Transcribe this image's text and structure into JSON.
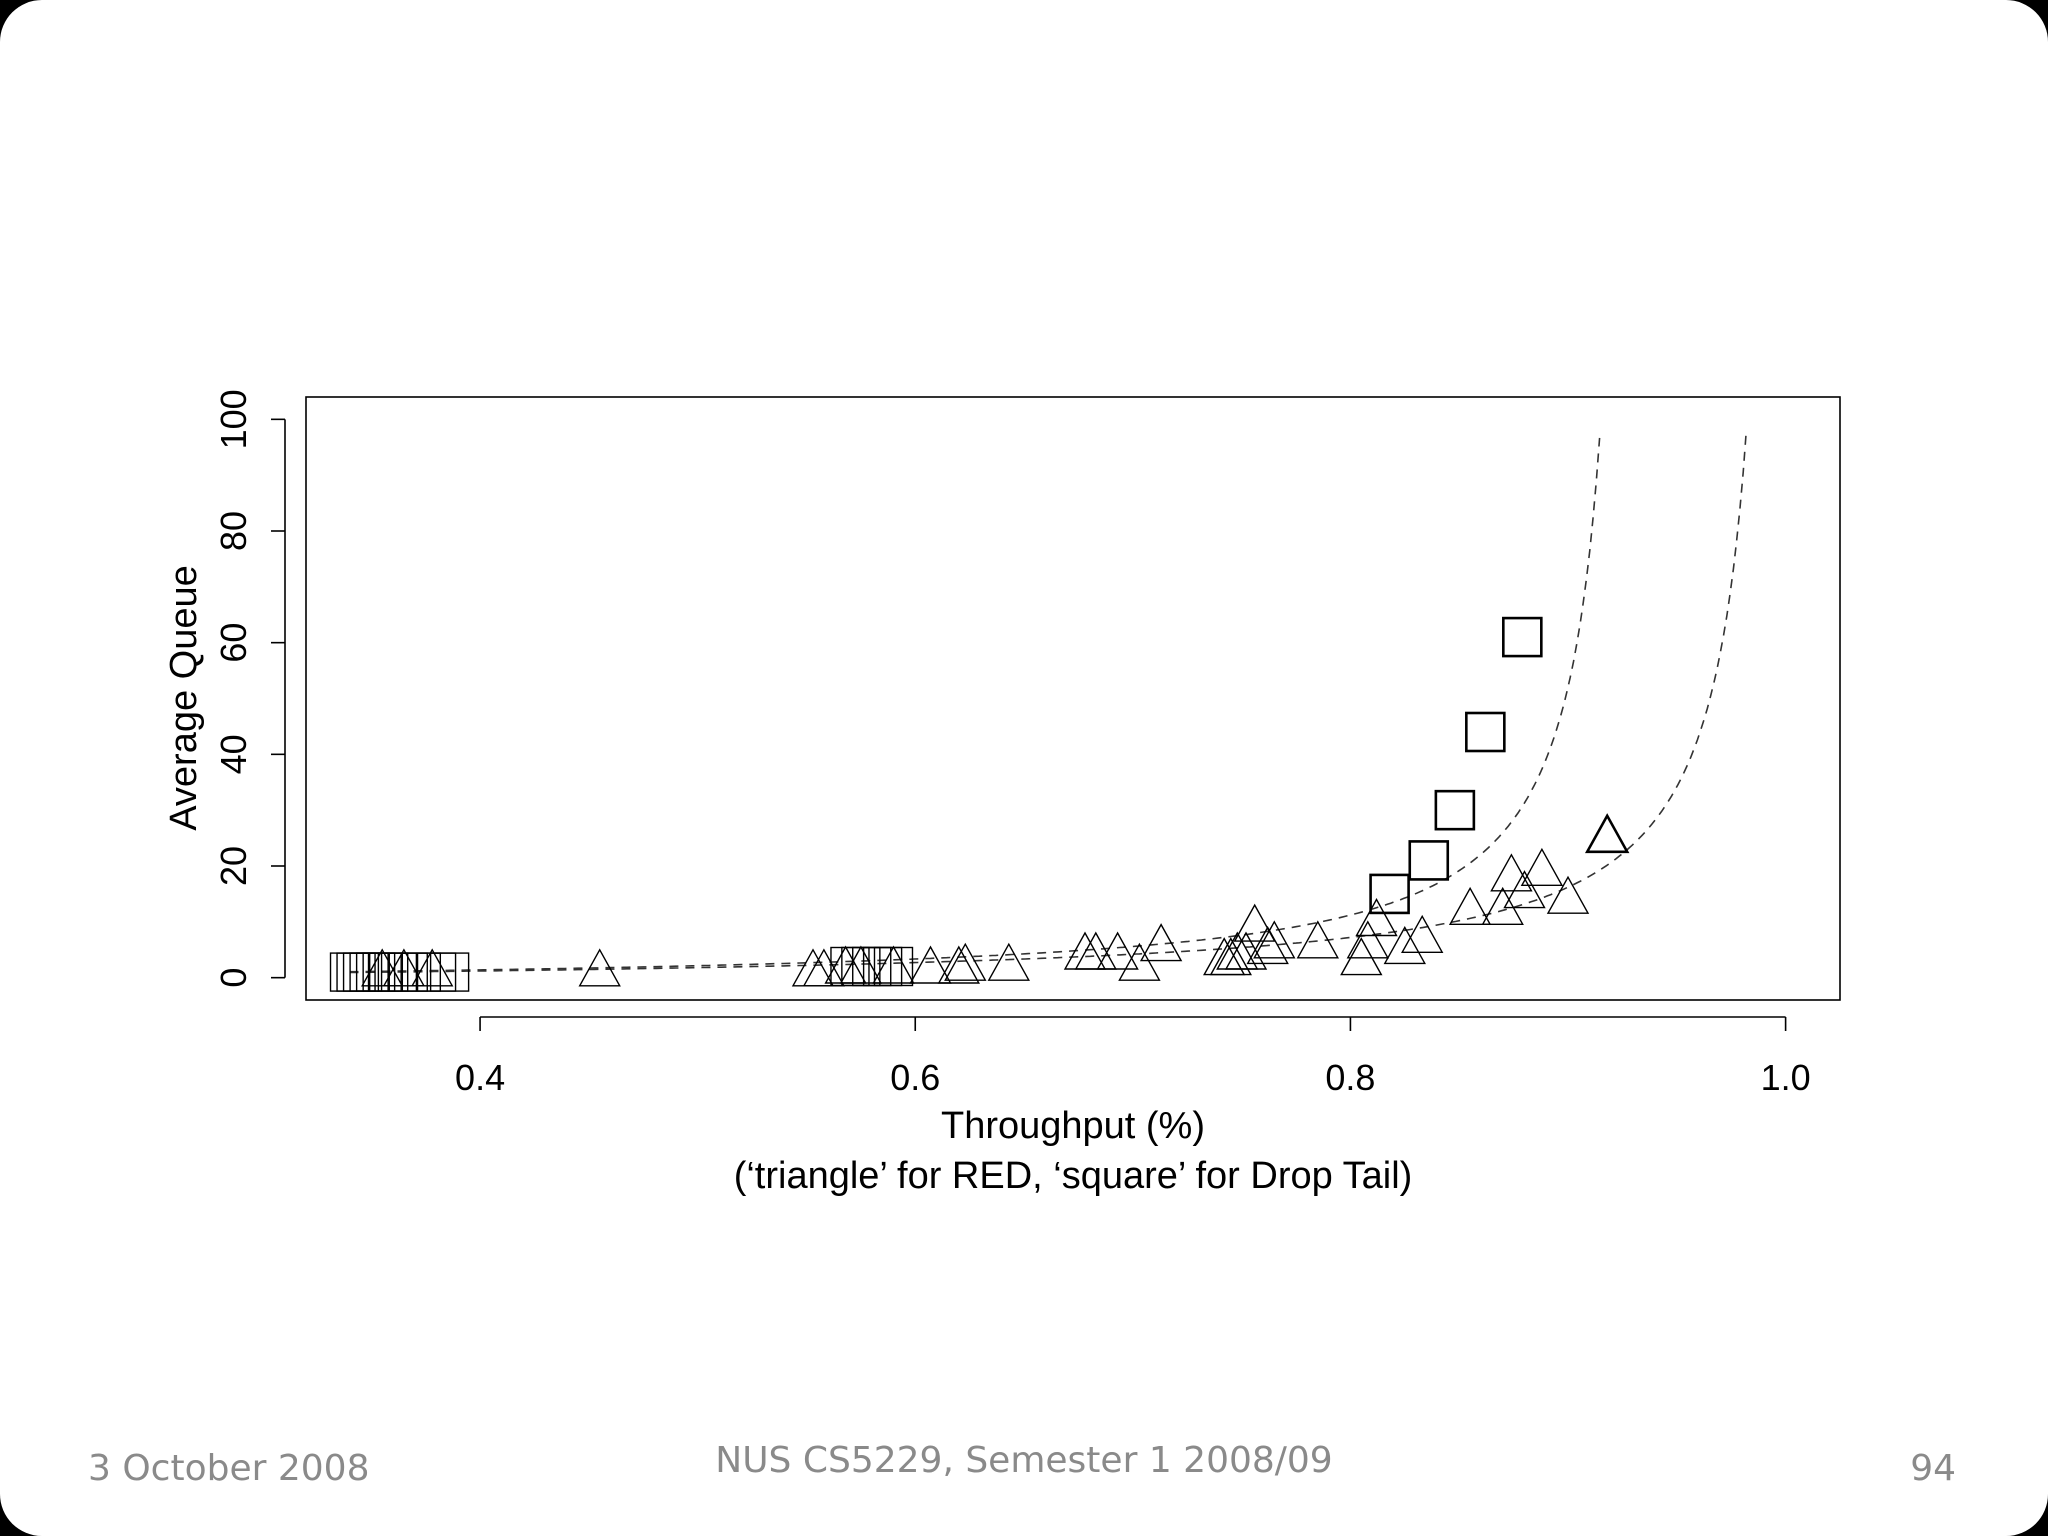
{
  "slide": {
    "footer_date": "3 October 2008",
    "footer_course": "NUS CS5229, Semester 1 2008/09",
    "page_number": "94"
  },
  "chart_data": {
    "type": "scatter",
    "title": "",
    "xlabel": "Throughput (%)",
    "xlabel_sub": "(‘triangle’ for RED, ‘square’ for Drop Tail)",
    "ylabel": "Average Queue",
    "xlim": [
      0.32,
      1.025
    ],
    "ylim": [
      -4,
      104
    ],
    "x_ticks": [
      0.4,
      0.6,
      0.8,
      1.0
    ],
    "x_tick_labels": [
      "0.4",
      "0.6",
      "0.8",
      "1.0"
    ],
    "y_ticks": [
      0,
      20,
      40,
      60,
      80,
      100
    ],
    "y_tick_labels": [
      "0",
      "20",
      "40",
      "60",
      "80",
      "100"
    ],
    "grid": false,
    "series": [
      {
        "name": "Drop Tail",
        "marker": "square",
        "points": [
          {
            "x": 0.34,
            "y": 1
          },
          {
            "x": 0.343,
            "y": 1
          },
          {
            "x": 0.346,
            "y": 1
          },
          {
            "x": 0.349,
            "y": 1
          },
          {
            "x": 0.352,
            "y": 1
          },
          {
            "x": 0.355,
            "y": 1
          },
          {
            "x": 0.358,
            "y": 1
          },
          {
            "x": 0.362,
            "y": 1
          },
          {
            "x": 0.367,
            "y": 1
          },
          {
            "x": 0.373,
            "y": 1
          },
          {
            "x": 0.38,
            "y": 1
          },
          {
            "x": 0.386,
            "y": 1
          },
          {
            "x": 0.57,
            "y": 2
          },
          {
            "x": 0.575,
            "y": 2
          },
          {
            "x": 0.58,
            "y": 2
          },
          {
            "x": 0.585,
            "y": 2
          },
          {
            "x": 0.59,
            "y": 2
          },
          {
            "x": 0.818,
            "y": 15
          },
          {
            "x": 0.836,
            "y": 21
          },
          {
            "x": 0.848,
            "y": 30
          },
          {
            "x": 0.862,
            "y": 44
          },
          {
            "x": 0.879,
            "y": 61
          }
        ]
      },
      {
        "name": "RED",
        "marker": "triangle",
        "points": [
          {
            "x": 0.355,
            "y": 1
          },
          {
            "x": 0.365,
            "y": 1
          },
          {
            "x": 0.378,
            "y": 1
          },
          {
            "x": 0.455,
            "y": 1
          },
          {
            "x": 0.553,
            "y": 1
          },
          {
            "x": 0.558,
            "y": 1
          },
          {
            "x": 0.568,
            "y": 1.5
          },
          {
            "x": 0.575,
            "y": 1.5
          },
          {
            "x": 0.59,
            "y": 1.5
          },
          {
            "x": 0.607,
            "y": 1.5
          },
          {
            "x": 0.62,
            "y": 1.5
          },
          {
            "x": 0.623,
            "y": 2
          },
          {
            "x": 0.643,
            "y": 2
          },
          {
            "x": 0.678,
            "y": 4
          },
          {
            "x": 0.683,
            "y": 4
          },
          {
            "x": 0.693,
            "y": 4
          },
          {
            "x": 0.703,
            "y": 2
          },
          {
            "x": 0.713,
            "y": 5.5
          },
          {
            "x": 0.742,
            "y": 3
          },
          {
            "x": 0.745,
            "y": 3
          },
          {
            "x": 0.748,
            "y": 4
          },
          {
            "x": 0.752,
            "y": 4
          },
          {
            "x": 0.756,
            "y": 9
          },
          {
            "x": 0.762,
            "y": 5
          },
          {
            "x": 0.765,
            "y": 6
          },
          {
            "x": 0.785,
            "y": 6
          },
          {
            "x": 0.805,
            "y": 3
          },
          {
            "x": 0.808,
            "y": 6
          },
          {
            "x": 0.812,
            "y": 10
          },
          {
            "x": 0.825,
            "y": 5
          },
          {
            "x": 0.833,
            "y": 7
          },
          {
            "x": 0.855,
            "y": 12
          },
          {
            "x": 0.87,
            "y": 12
          },
          {
            "x": 0.874,
            "y": 18
          },
          {
            "x": 0.88,
            "y": 15
          },
          {
            "x": 0.888,
            "y": 19
          },
          {
            "x": 0.9,
            "y": 14
          },
          {
            "x": 0.918,
            "y": 25
          }
        ]
      }
    ],
    "fit_curves": [
      {
        "name": "Drop Tail fit",
        "style": "dashed",
        "asymptote": 0.932,
        "a": 0.185
      },
      {
        "name": "RED fit",
        "style": "dashed",
        "asymptote": 1.0,
        "a": 0.18
      }
    ]
  }
}
